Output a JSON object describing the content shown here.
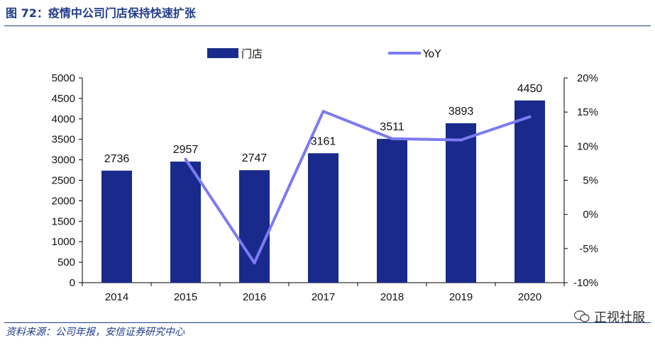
{
  "header": {
    "title": "图 72：疫情中公司门店保持快速扩张"
  },
  "footer": {
    "source": "资料来源：公司年报，安信证券研究中心",
    "watermark": "正视社服"
  },
  "colors": {
    "bar": "#1a2a8c",
    "line": "#7b7bf2",
    "title": "#1f3a8a"
  },
  "chart_data": {
    "type": "bar",
    "categories": [
      "2014",
      "2015",
      "2016",
      "2017",
      "2018",
      "2019",
      "2020"
    ],
    "series": [
      {
        "name": "门店",
        "type": "bar",
        "axis": "left",
        "values": [
          2736,
          2957,
          2747,
          3161,
          3511,
          3893,
          4450
        ],
        "labels": [
          "2736",
          "2957",
          "2747",
          "3161",
          "3511",
          "3893",
          "4450"
        ]
      },
      {
        "name": "YoY",
        "type": "line",
        "axis": "right",
        "values": [
          null,
          8.1,
          -7.1,
          15.1,
          11.1,
          10.9,
          14.3
        ]
      }
    ],
    "y_left": {
      "min": 0,
      "max": 5000,
      "ticks": [
        "0",
        "500",
        "1000",
        "1500",
        "2000",
        "2500",
        "3000",
        "3500",
        "4000",
        "4500",
        "5000"
      ]
    },
    "y_right": {
      "min": -10,
      "max": 20,
      "ticks": [
        "-10%",
        "-5%",
        "0%",
        "5%",
        "10%",
        "15%",
        "20%"
      ]
    },
    "legend": {
      "position": "top"
    },
    "grid": false
  }
}
